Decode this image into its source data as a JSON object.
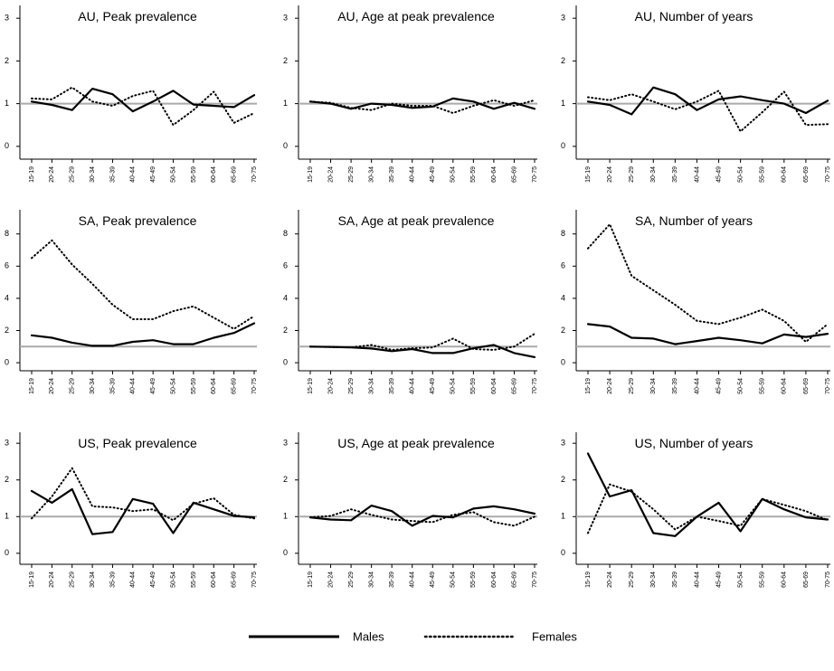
{
  "chart_data": [
    {
      "type": "line",
      "title": "AU,  Peak prevalence",
      "categories": [
        "15-19",
        "20-24",
        "25-29",
        "30-34",
        "35-39",
        "40-44",
        "45-49",
        "50-54",
        "55-59",
        "60-64",
        "65-69",
        "70-75"
      ],
      "ylim": [
        -0.3,
        3.3
      ],
      "yticks": [
        0,
        1,
        2,
        3
      ],
      "refline": 1,
      "series": [
        {
          "name": "Males",
          "color": "#000000",
          "linestyle": "solid",
          "values": [
            1.05,
            0.97,
            0.85,
            1.35,
            1.22,
            0.82,
            1.05,
            1.3,
            0.98,
            0.95,
            0.92,
            1.2
          ]
        },
        {
          "name": "Females",
          "color": "#000000",
          "linestyle": "dotted",
          "values": [
            1.12,
            1.1,
            1.38,
            1.05,
            0.95,
            1.18,
            1.3,
            0.5,
            0.85,
            1.28,
            0.55,
            0.78
          ]
        }
      ]
    },
    {
      "type": "line",
      "title": "AU, Age at peak prevalence",
      "categories": [
        "15-19",
        "20-24",
        "25-29",
        "30-34",
        "35-39",
        "40-44",
        "45-49",
        "50-54",
        "55-59",
        "60-64",
        "65-69",
        "70-75"
      ],
      "ylim": [
        -0.3,
        3.3
      ],
      "yticks": [
        0,
        1,
        2,
        3
      ],
      "refline": 1,
      "series": [
        {
          "color": "#000000",
          "linestyle": "solid",
          "values": [
            1.05,
            1.0,
            0.88,
            1.0,
            0.97,
            0.9,
            0.93,
            1.12,
            1.05,
            0.88,
            1.02,
            0.88
          ]
        },
        {
          "color": "#000000",
          "linestyle": "dotted",
          "values": [
            1.05,
            1.02,
            0.9,
            0.85,
            1.0,
            0.95,
            0.95,
            0.78,
            0.95,
            1.08,
            0.95,
            1.08
          ]
        }
      ]
    },
    {
      "type": "line",
      "title": "AU, Number of years",
      "categories": [
        "15-19",
        "20-24",
        "25-29",
        "30-34",
        "35-39",
        "40-44",
        "45-49",
        "50-54",
        "55-59",
        "60-64",
        "65-69",
        "70-75"
      ],
      "ylim": [
        -0.3,
        3.3
      ],
      "yticks": [
        0,
        1,
        2,
        3
      ],
      "refline": 1,
      "series": [
        {
          "color": "#000000",
          "linestyle": "solid",
          "values": [
            1.05,
            0.97,
            0.75,
            1.38,
            1.22,
            0.85,
            1.1,
            1.17,
            1.08,
            1.0,
            0.78,
            1.07
          ]
        },
        {
          "color": "#000000",
          "linestyle": "dotted",
          "values": [
            1.15,
            1.08,
            1.22,
            1.05,
            0.87,
            1.05,
            1.3,
            0.35,
            0.8,
            1.28,
            0.5,
            0.52
          ]
        }
      ]
    },
    {
      "type": "line",
      "title": "SA,  Peak prevalence",
      "categories": [
        "15-19",
        "20-24",
        "25-29",
        "30-34",
        "35-39",
        "40-44",
        "45-49",
        "50-54",
        "55-59",
        "60-64",
        "65-69",
        "70-75"
      ],
      "ylim": [
        -0.5,
        9.5
      ],
      "yticks": [
        0,
        2,
        4,
        6,
        8
      ],
      "refline": 1,
      "series": [
        {
          "color": "#000000",
          "linestyle": "solid",
          "values": [
            1.7,
            1.55,
            1.25,
            1.05,
            1.05,
            1.3,
            1.4,
            1.15,
            1.15,
            1.55,
            1.85,
            2.45
          ]
        },
        {
          "color": "#000000",
          "linestyle": "dotted",
          "values": [
            6.5,
            7.6,
            6.1,
            4.9,
            3.6,
            2.7,
            2.7,
            3.2,
            3.5,
            2.8,
            2.1,
            2.9
          ]
        }
      ]
    },
    {
      "type": "line",
      "title": "SA, Age at peak prevalence",
      "categories": [
        "15-19",
        "20-24",
        "25-29",
        "30-34",
        "35-39",
        "40-44",
        "45-49",
        "50-54",
        "55-59",
        "60-64",
        "65-69",
        "70-75"
      ],
      "ylim": [
        -0.5,
        9.5
      ],
      "yticks": [
        0,
        2,
        4,
        6,
        8
      ],
      "refline": 1,
      "series": [
        {
          "color": "#000000",
          "linestyle": "solid",
          "values": [
            1.0,
            0.98,
            0.95,
            0.88,
            0.72,
            0.85,
            0.6,
            0.6,
            0.9,
            1.1,
            0.6,
            0.35
          ]
        },
        {
          "color": "#000000",
          "linestyle": "dotted",
          "values": [
            1.0,
            0.98,
            0.95,
            1.1,
            0.8,
            0.9,
            0.95,
            1.5,
            0.85,
            0.8,
            1.0,
            1.8
          ]
        }
      ]
    },
    {
      "type": "line",
      "title": "SA, Number of years",
      "categories": [
        "15-19",
        "20-24",
        "25-29",
        "30-34",
        "35-39",
        "40-44",
        "45-49",
        "50-54",
        "55-59",
        "60-64",
        "65-69",
        "70-75"
      ],
      "ylim": [
        -0.5,
        9.5
      ],
      "yticks": [
        0,
        2,
        4,
        6,
        8
      ],
      "refline": 1,
      "series": [
        {
          "color": "#000000",
          "linestyle": "solid",
          "values": [
            2.4,
            2.25,
            1.55,
            1.5,
            1.15,
            1.35,
            1.55,
            1.4,
            1.2,
            1.75,
            1.6,
            1.8
          ]
        },
        {
          "color": "#000000",
          "linestyle": "dotted",
          "values": [
            7.1,
            8.6,
            5.4,
            4.5,
            3.6,
            2.6,
            2.4,
            2.8,
            3.3,
            2.6,
            1.3,
            2.4
          ]
        }
      ]
    },
    {
      "type": "line",
      "title": "US,  Peak prevalence",
      "categories": [
        "15-19",
        "20-24",
        "25-29",
        "30-34",
        "35-39",
        "40-44",
        "45-49",
        "50-54",
        "55-59",
        "60-64",
        "65-69",
        "70-75"
      ],
      "ylim": [
        -0.3,
        3.3
      ],
      "yticks": [
        0,
        1,
        2,
        3
      ],
      "refline": 1,
      "series": [
        {
          "color": "#000000",
          "linestyle": "solid",
          "values": [
            1.7,
            1.38,
            1.75,
            0.52,
            0.58,
            1.48,
            1.35,
            0.55,
            1.38,
            1.2,
            1.02,
            0.98
          ]
        },
        {
          "color": "#000000",
          "linestyle": "dotted",
          "values": [
            0.95,
            1.55,
            2.32,
            1.28,
            1.25,
            1.15,
            1.2,
            0.9,
            1.35,
            1.5,
            1.05,
            0.95
          ]
        }
      ]
    },
    {
      "type": "line",
      "title": "US, Age at peak prevalence",
      "categories": [
        "15-19",
        "20-24",
        "25-29",
        "30-34",
        "35-39",
        "40-44",
        "45-49",
        "50-54",
        "55-59",
        "60-64",
        "65-69",
        "70-75"
      ],
      "ylim": [
        -0.3,
        3.3
      ],
      "yticks": [
        0,
        1,
        2,
        3
      ],
      "refline": 1,
      "series": [
        {
          "color": "#000000",
          "linestyle": "solid",
          "values": [
            0.98,
            0.92,
            0.9,
            1.3,
            1.15,
            0.75,
            1.02,
            0.98,
            1.22,
            1.28,
            1.2,
            1.08
          ]
        },
        {
          "color": "#000000",
          "linestyle": "dotted",
          "values": [
            0.98,
            1.02,
            1.2,
            1.05,
            0.92,
            0.88,
            0.85,
            1.05,
            1.12,
            0.85,
            0.75,
            1.0
          ]
        }
      ]
    },
    {
      "type": "line",
      "title": "US, Number of years",
      "categories": [
        "15-19",
        "20-24",
        "25-29",
        "30-34",
        "35-39",
        "40-44",
        "45-49",
        "50-54",
        "55-59",
        "60-64",
        "65-69",
        "70-75"
      ],
      "ylim": [
        -0.3,
        3.3
      ],
      "yticks": [
        0,
        1,
        2,
        3
      ],
      "refline": 1,
      "series": [
        {
          "color": "#000000",
          "linestyle": "solid",
          "values": [
            2.72,
            1.55,
            1.72,
            0.55,
            0.47,
            1.0,
            1.38,
            0.6,
            1.48,
            1.2,
            0.98,
            0.92
          ]
        },
        {
          "color": "#000000",
          "linestyle": "dotted",
          "values": [
            0.55,
            1.88,
            1.68,
            1.2,
            0.65,
            1.0,
            0.88,
            0.75,
            1.48,
            1.32,
            1.15,
            0.9
          ]
        }
      ]
    }
  ]
}
